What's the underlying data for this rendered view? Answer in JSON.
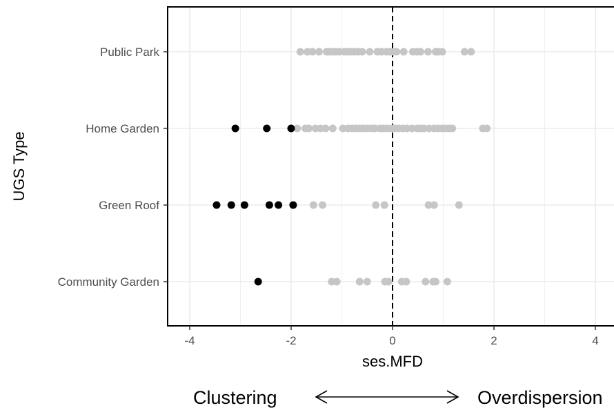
{
  "chart_data": {
    "type": "scatter",
    "xlabel": "ses.MFD",
    "ylabel": "UGS Type",
    "xlim": [
      -4.4,
      4.4
    ],
    "x_ticks": [
      "-4",
      "-2",
      "0",
      "2",
      "4"
    ],
    "x_tick_values": [
      -4,
      -2,
      0,
      2,
      4
    ],
    "categories": [
      "Public Park",
      "Home Garden",
      "Green Roof",
      "Community Garden"
    ],
    "reference_line": {
      "x": 0,
      "style": "dashed"
    },
    "grid": true,
    "colors": {
      "significant": "#000000",
      "non_significant": "#c6c6c6",
      "grid": "#ebebeb"
    },
    "series": [
      {
        "category": "Public Park",
        "significant": [],
        "non_significant": [
          -1.82,
          -1.68,
          -1.58,
          -1.45,
          -1.3,
          -1.25,
          -1.18,
          -1.12,
          -1.05,
          -0.95,
          -0.88,
          -0.82,
          -0.75,
          -0.68,
          -0.6,
          -0.45,
          -0.3,
          -0.22,
          -0.12,
          -0.05,
          0.02,
          0.08,
          0.22,
          0.4,
          0.48,
          0.55,
          0.7,
          0.85,
          0.9,
          0.98,
          1.42,
          1.55
        ]
      },
      {
        "category": "Home Garden",
        "significant": [
          -3.1,
          -2.48,
          -2.0
        ],
        "non_significant": [
          -1.88,
          -1.72,
          -1.65,
          -1.52,
          -1.42,
          -1.32,
          -1.18,
          -0.98,
          -0.88,
          -0.8,
          -0.72,
          -0.65,
          -0.58,
          -0.5,
          -0.42,
          -0.35,
          -0.25,
          -0.18,
          -0.1,
          -0.02,
          0.05,
          0.12,
          0.2,
          0.28,
          0.38,
          0.48,
          0.55,
          0.62,
          0.72,
          0.82,
          0.9,
          0.98,
          1.05,
          1.12,
          1.18,
          1.78,
          1.86
        ]
      },
      {
        "category": "Green Roof",
        "significant": [
          -3.47,
          -3.18,
          -2.92,
          -2.43,
          -2.25,
          -1.96
        ],
        "non_significant": [
          -1.56,
          -1.38,
          -0.33,
          -0.16,
          0.71,
          0.82,
          1.31
        ]
      },
      {
        "category": "Community Garden",
        "significant": [
          -2.65
        ],
        "non_significant": [
          -1.2,
          -1.1,
          -0.65,
          -0.5,
          -0.15,
          -0.08,
          0.18,
          0.27,
          0.65,
          0.8,
          0.85,
          1.08
        ]
      }
    ],
    "annotations": {
      "left": "Clustering",
      "right": "Overdispersion",
      "arrow": "double-headed"
    }
  }
}
